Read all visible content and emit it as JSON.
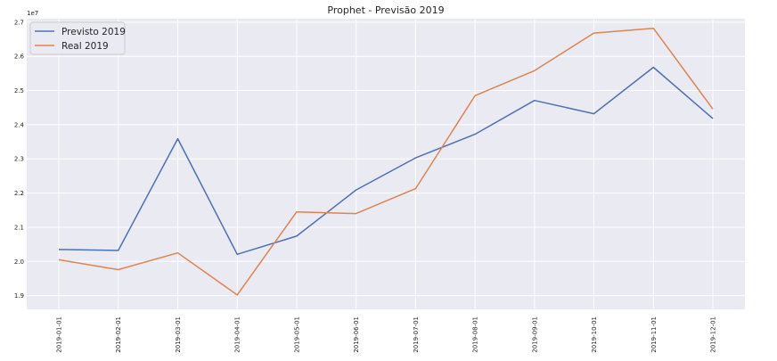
{
  "chart_data": {
    "type": "line",
    "title": "Prophet - Previsão 2019",
    "xlabel": "",
    "ylabel": "",
    "y_offset_label": "1e7",
    "x": [
      "2019-01-01",
      "2019-02-01",
      "2019-03-01",
      "2019-04-01",
      "2019-05-01",
      "2019-06-01",
      "2019-07-01",
      "2019-08-01",
      "2019-09-01",
      "2019-10-01",
      "2019-11-01",
      "2019-12-01"
    ],
    "yticks": [
      "1.9",
      "2.0",
      "2.1",
      "2.2",
      "2.3",
      "2.4",
      "2.5",
      "2.6",
      "2.7"
    ],
    "ytick_values": [
      1.9,
      2.0,
      2.1,
      2.2,
      2.3,
      2.4,
      2.5,
      2.6,
      2.7
    ],
    "ylim": [
      1.86,
      2.71
    ],
    "grid": true,
    "legend_position": "top-left",
    "series": [
      {
        "name": "Previsto 2019",
        "color": "#4c72b0",
        "values": [
          2.035,
          2.032,
          2.359,
          2.021,
          2.074,
          2.209,
          2.303,
          2.372,
          2.471,
          2.432,
          2.568,
          2.418
        ]
      },
      {
        "name": "Real 2019",
        "color": "#dd8452",
        "values": [
          2.005,
          1.976,
          2.025,
          1.902,
          2.145,
          2.14,
          2.213,
          2.485,
          2.558,
          2.668,
          2.682,
          2.446
        ]
      }
    ]
  }
}
